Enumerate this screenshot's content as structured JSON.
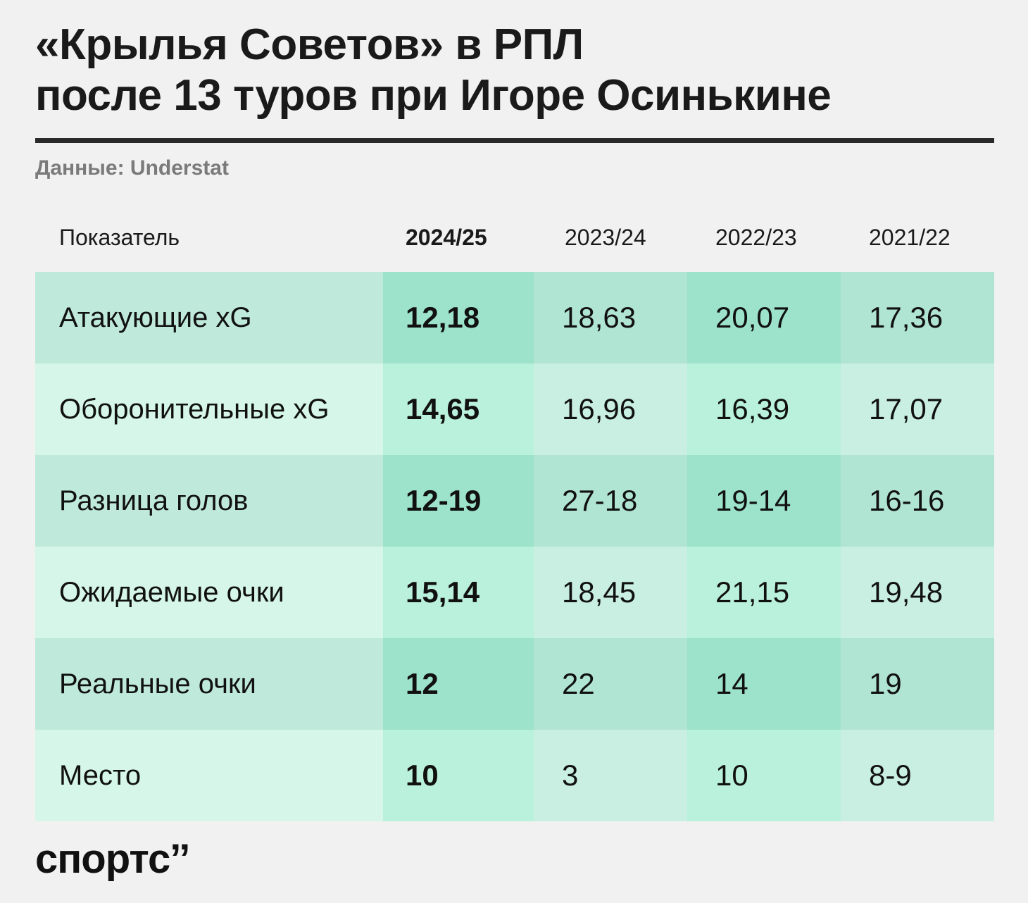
{
  "title_lines": [
    "«Крылья Советов» в РПЛ",
    "после 13 туров при Игоре Осинькине"
  ],
  "source": "Данные: Understat",
  "logo": "спортс’’",
  "colors": {
    "row_dark": [
      "#bfeadb",
      "#9de2ca",
      "#b0e4d3",
      "#9de2ca",
      "#b0e4d3"
    ],
    "row_light": [
      "#d5f6e9",
      "#b9f1dd",
      "#c8efe2",
      "#b9f1dd",
      "#c8efe2"
    ]
  },
  "chart_data": {
    "type": "table",
    "columns": [
      "Показатель",
      "2024/25",
      "2023/24",
      "2022/23",
      "2021/22"
    ],
    "rows": [
      [
        "Атакующие xG",
        "12,18",
        "18,63",
        "20,07",
        "17,36"
      ],
      [
        "Оборонительные xG",
        "14,65",
        "16,96",
        "16,39",
        "17,07"
      ],
      [
        "Разница голов",
        "12-19",
        "27-18",
        "19-14",
        "16-16"
      ],
      [
        "Ожидаемые очки",
        "15,14",
        "18,45",
        "21,15",
        "19,48"
      ],
      [
        "Реальные очки",
        "12",
        "22",
        "14",
        "19"
      ],
      [
        "Место",
        "10",
        "3",
        "10",
        "8-9"
      ]
    ]
  }
}
